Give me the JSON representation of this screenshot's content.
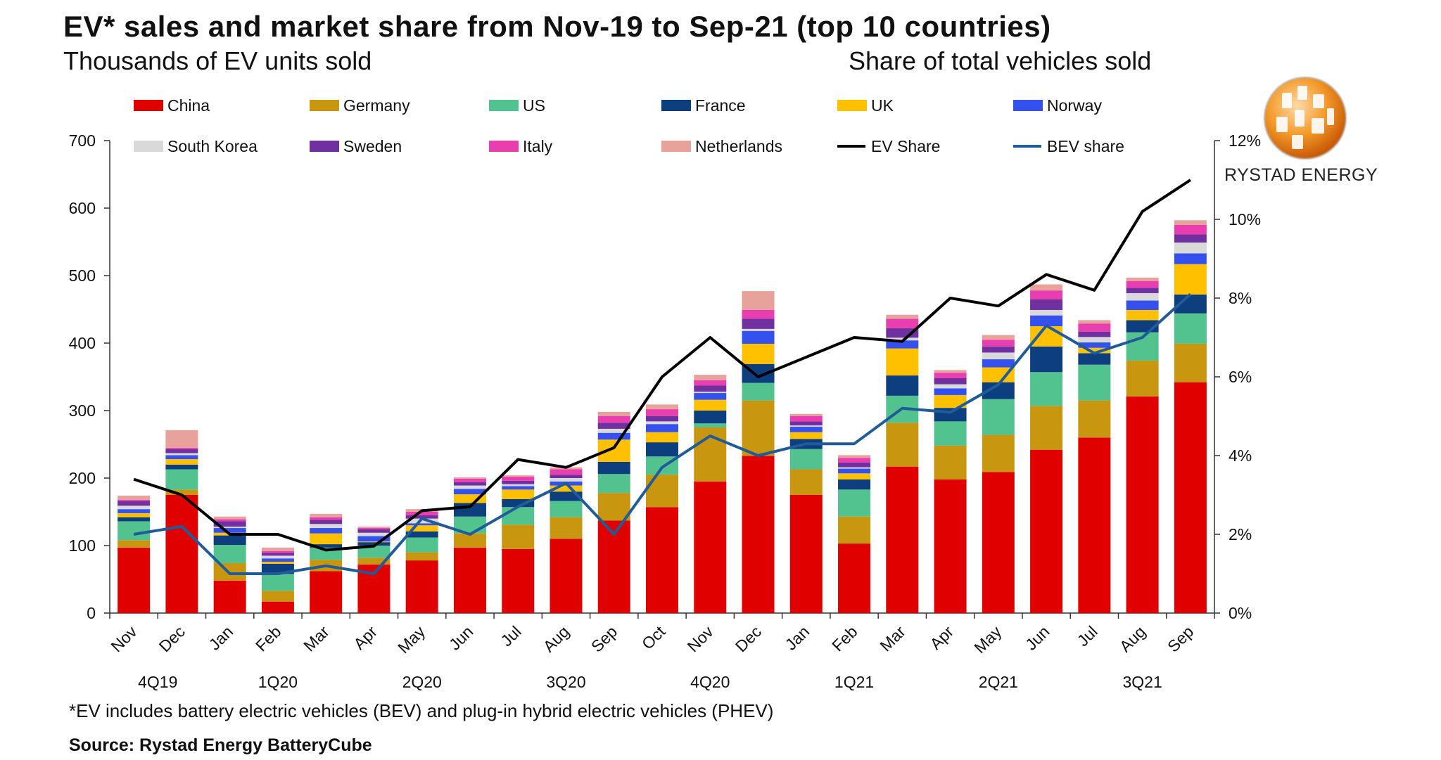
{
  "title": "EV* sales and market share from Nov-19 to Sep-21 (top 10 countries)",
  "subtitle_left": "Thousands of EV units sold",
  "subtitle_right": "Share of total vehicles sold",
  "footnote": "*EV includes battery electric vehicles (BEV) and plug-in hybrid electric vehicles (PHEV)",
  "source": "Source: Rystad Energy BatteryCube",
  "logo_text": "RYSTAD ENERGY",
  "colors": {
    "China": "#e00000",
    "Germany": "#c8960f",
    "US": "#52c28e",
    "France": "#0d3f7e",
    "UK": "#ffc000",
    "Norway": "#3451ef",
    "South Korea": "#d9d9d9",
    "Sweden": "#7030a0",
    "Italy": "#e83eb0",
    "Netherlands": "#e8a29c",
    "EV Share": "#000000",
    "BEV share": "#1f5c99"
  },
  "chart_data": {
    "type": "bar",
    "stacked": true,
    "categories": [
      "Nov",
      "Dec",
      "Jan",
      "Feb",
      "Mar",
      "Apr",
      "May",
      "Jun",
      "Jul",
      "Aug",
      "Sep",
      "Oct",
      "Nov",
      "Dec",
      "Jan",
      "Feb",
      "Mar",
      "Apr",
      "May",
      "Jun",
      "Jul",
      "Aug",
      "Sep"
    ],
    "quarter_labels": [
      "4Q19",
      "1Q20",
      "2Q20",
      "3Q20",
      "4Q20",
      "1Q21",
      "2Q21",
      "3Q21"
    ],
    "ylim": [
      0,
      700
    ],
    "yticks": [
      "0",
      "100",
      "200",
      "300",
      "400",
      "500",
      "600",
      "700"
    ],
    "y2lim": [
      0,
      12
    ],
    "y2ticks": [
      "0%",
      "2%",
      "4%",
      "6%",
      "8%",
      "10%",
      "12%"
    ],
    "legend": [
      "China",
      "Germany",
      "US",
      "France",
      "UK",
      "Norway",
      "South Korea",
      "Sweden",
      "Italy",
      "Netherlands",
      "EV Share",
      "BEV share"
    ],
    "series": [
      {
        "name": "China",
        "values": [
          97,
          175,
          48,
          17,
          62,
          72,
          78,
          97,
          95,
          110,
          137,
          157,
          195,
          233,
          175,
          103,
          217,
          198,
          209,
          242,
          260,
          321,
          342
        ]
      },
      {
        "name": "Germany",
        "values": [
          11,
          8,
          26,
          16,
          17,
          10,
          12,
          21,
          36,
          32,
          41,
          48,
          80,
          82,
          38,
          40,
          65,
          50,
          55,
          65,
          55,
          53,
          57
        ]
      },
      {
        "name": "US",
        "values": [
          28,
          30,
          27,
          25,
          18,
          18,
          22,
          25,
          26,
          24,
          28,
          27,
          6,
          26,
          30,
          40,
          40,
          36,
          53,
          50,
          53,
          42,
          45
        ]
      },
      {
        "name": "France",
        "values": [
          6,
          7,
          14,
          15,
          5,
          5,
          9,
          20,
          12,
          14,
          18,
          21,
          19,
          28,
          15,
          15,
          30,
          20,
          25,
          38,
          17,
          18,
          28
        ]
      },
      {
        "name": "UK",
        "values": [
          6,
          8,
          4,
          3,
          16,
          1,
          9,
          13,
          14,
          9,
          33,
          15,
          16,
          30,
          10,
          9,
          40,
          19,
          22,
          30,
          8,
          15,
          45
        ]
      },
      {
        "name": "Norway",
        "values": [
          6,
          6,
          7,
          5,
          8,
          8,
          3,
          8,
          5,
          6,
          10,
          12,
          10,
          19,
          8,
          7,
          12,
          10,
          12,
          16,
          8,
          14,
          16
        ]
      },
      {
        "name": "South Korea",
        "values": [
          5,
          3,
          2,
          4,
          6,
          5,
          7,
          5,
          3,
          5,
          6,
          4,
          2,
          3,
          2,
          2,
          4,
          6,
          10,
          8,
          8,
          11,
          16
        ]
      },
      {
        "name": "Sweden",
        "values": [
          7,
          6,
          8,
          4,
          6,
          5,
          5,
          5,
          5,
          5,
          9,
          8,
          9,
          15,
          6,
          7,
          14,
          9,
          9,
          16,
          8,
          8,
          12
        ]
      },
      {
        "name": "Italy",
        "values": [
          2,
          2,
          3,
          3,
          4,
          2,
          5,
          5,
          6,
          8,
          10,
          10,
          8,
          13,
          8,
          7,
          14,
          8,
          10,
          13,
          12,
          10,
          14
        ]
      },
      {
        "name": "Netherlands",
        "values": [
          6,
          26,
          4,
          5,
          5,
          2,
          4,
          2,
          2,
          3,
          6,
          7,
          8,
          28,
          3,
          4,
          6,
          4,
          7,
          9,
          5,
          5,
          7
        ]
      }
    ],
    "lines": [
      {
        "name": "EV Share",
        "axis": "right",
        "values": [
          3.4,
          3.0,
          2.0,
          2.0,
          1.6,
          1.7,
          2.6,
          2.7,
          3.9,
          3.7,
          4.2,
          6.0,
          7.0,
          6.0,
          6.5,
          7.0,
          6.9,
          8.0,
          7.8,
          8.6,
          8.2,
          10.2,
          11.0
        ]
      },
      {
        "name": "BEV share",
        "axis": "right",
        "values": [
          2.0,
          2.2,
          1.0,
          1.0,
          1.2,
          1.0,
          2.4,
          2.0,
          2.7,
          3.3,
          2.0,
          3.7,
          4.5,
          4.0,
          4.3,
          4.3,
          5.2,
          5.1,
          5.8,
          7.3,
          6.6,
          7.0,
          8.1
        ]
      }
    ]
  }
}
